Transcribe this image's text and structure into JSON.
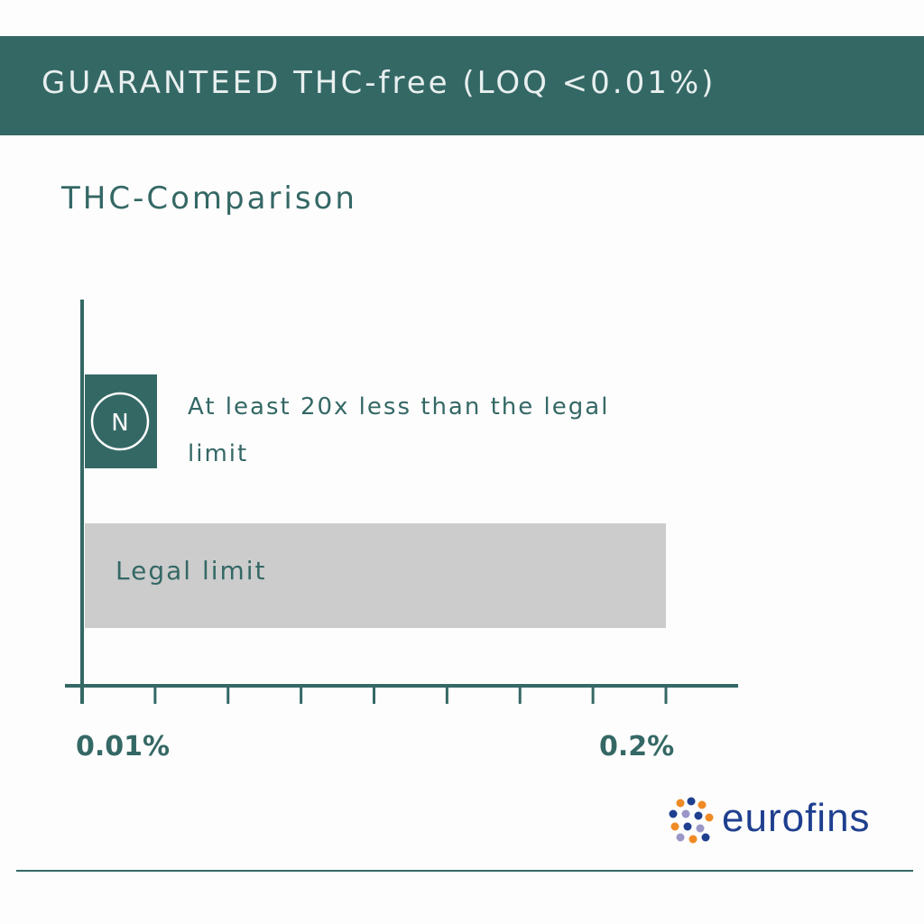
{
  "header": {
    "title": "GUARANTEED THC-free (LOQ <0.01%)"
  },
  "subtitle": "THC-Comparison",
  "chart_data": {
    "type": "bar",
    "orientation": "horizontal",
    "title": "THC-Comparison",
    "categories": [
      "N",
      "Legal limit"
    ],
    "values": [
      0.01,
      0.2
    ],
    "xlim": [
      0.01,
      0.2
    ],
    "tick_labels": [
      "0.01%",
      "0.2%"
    ],
    "annotations": [
      "At least 20x less than the legal limit"
    ],
    "colors": {
      "product_bar": "#346865",
      "legal_bar": "#cccccc",
      "axis": "#346865"
    },
    "grid": false
  },
  "product_badge": {
    "letter": "N"
  },
  "logo": {
    "name": "eurofins",
    "icon": "eurofins-logo-icon",
    "text_color": "#1f3f8f"
  }
}
